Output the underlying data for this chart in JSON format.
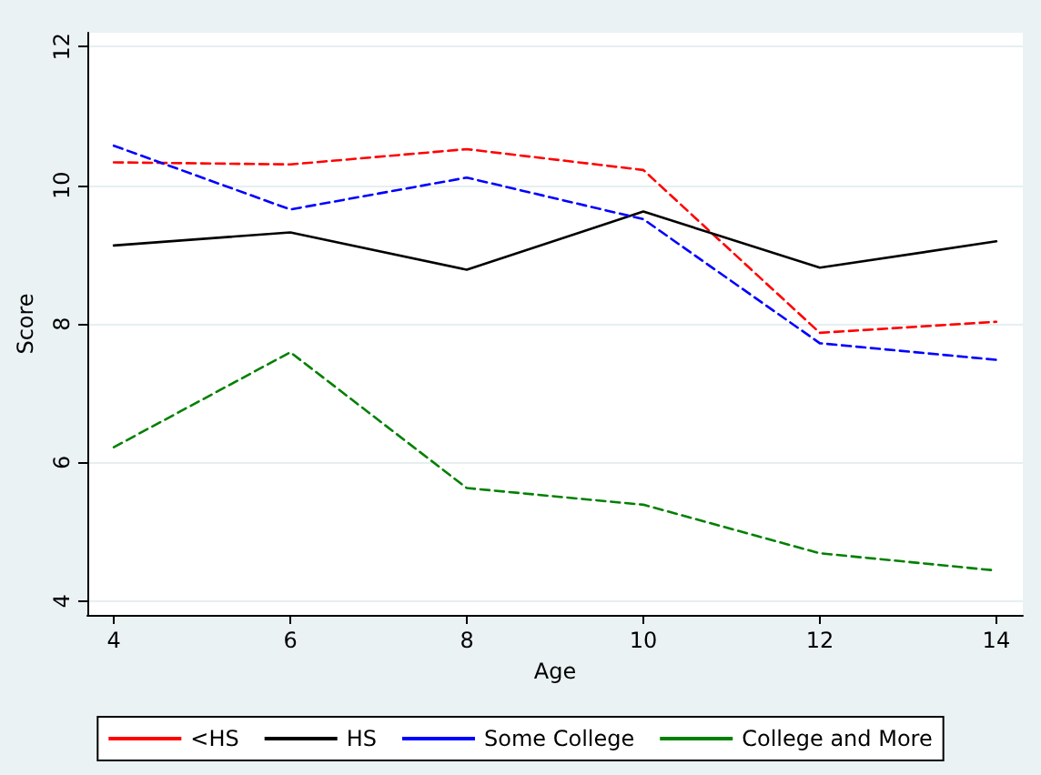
{
  "chart_data": {
    "type": "line",
    "xlabel": "Age",
    "ylabel": "Score",
    "x": [
      4,
      6,
      8,
      10,
      12,
      14
    ],
    "xlim": [
      3.7,
      14.3
    ],
    "xticks": [
      4,
      6,
      8,
      10,
      12,
      14
    ],
    "ylim": [
      3.8,
      12.2
    ],
    "yticks": [
      4,
      6,
      8,
      10,
      12
    ],
    "grid": "y",
    "legend": "bottom",
    "marker": "none",
    "series": [
      {
        "name": "<HS",
        "color": "#ff0000",
        "line_style": "dashed",
        "values": [
          10.33,
          10.3,
          10.52,
          10.22,
          7.87,
          8.03
        ]
      },
      {
        "name": "HS",
        "color": "#000000",
        "line_style": "solid",
        "values": [
          9.13,
          9.32,
          8.78,
          9.62,
          8.81,
          9.19
        ]
      },
      {
        "name": "Some College",
        "color": "#0000ff",
        "line_style": "dashed",
        "values": [
          10.57,
          9.65,
          10.11,
          9.51,
          7.72,
          7.48
        ]
      },
      {
        "name": "College and More",
        "color": "#008000",
        "line_style": "dashed",
        "values": [
          6.22,
          7.59,
          5.63,
          5.39,
          4.69,
          4.44
        ]
      }
    ]
  }
}
